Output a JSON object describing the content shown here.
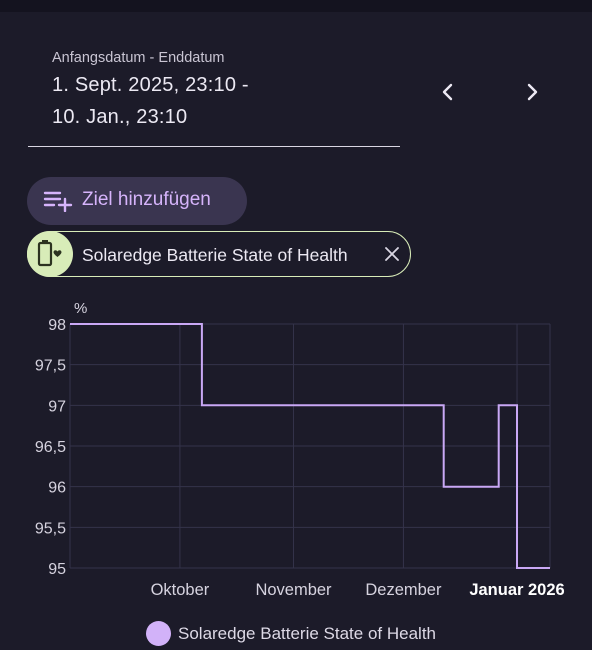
{
  "date_range": {
    "label": "Anfangsdatum - Enddatum",
    "start": "1. Sept. 2025, 23:10 -",
    "end": "10. Jan., 23:10"
  },
  "nav": {
    "prev_icon": "chevron-left-icon",
    "next_icon": "chevron-right-icon"
  },
  "add_target": {
    "label": "Ziel hinzufügen",
    "icon": "playlist-add-icon"
  },
  "series_chip": {
    "label": "Solaredge Batterie State of Health",
    "icon": "battery-heart-icon",
    "color": "#d8ecb8"
  },
  "colors": {
    "background": "#1c1b29",
    "line": "#c9a8f5",
    "accent": "#d6b4fb"
  },
  "chart_data": {
    "type": "line",
    "step": true,
    "ylabel": "%",
    "ylim": [
      95,
      98
    ],
    "yticks": [
      "98",
      "97,5",
      "97",
      "96,5",
      "96",
      "95,5",
      "95"
    ],
    "xlim": [
      "2025-09-01",
      "2026-01-10"
    ],
    "xticks": [
      {
        "date": "2025-10-01",
        "label": "Oktober",
        "bold": false
      },
      {
        "date": "2025-11-01",
        "label": "November",
        "bold": false
      },
      {
        "date": "2025-12-01",
        "label": "Dezember",
        "bold": false
      },
      {
        "date": "2026-01-01",
        "label": "Januar 2026",
        "bold": true
      }
    ],
    "grid": true,
    "legend": "bottom",
    "series": [
      {
        "name": "Solaredge Batterie State of Health",
        "color": "#c9a8f5",
        "points": [
          {
            "x": "2025-09-01",
            "y": 98
          },
          {
            "x": "2025-10-07",
            "y": 97
          },
          {
            "x": "2025-12-12",
            "y": 96
          },
          {
            "x": "2025-12-27",
            "y": 97
          },
          {
            "x": "2026-01-01",
            "y": 95
          },
          {
            "x": "2026-01-10",
            "y": 95
          }
        ]
      }
    ]
  }
}
